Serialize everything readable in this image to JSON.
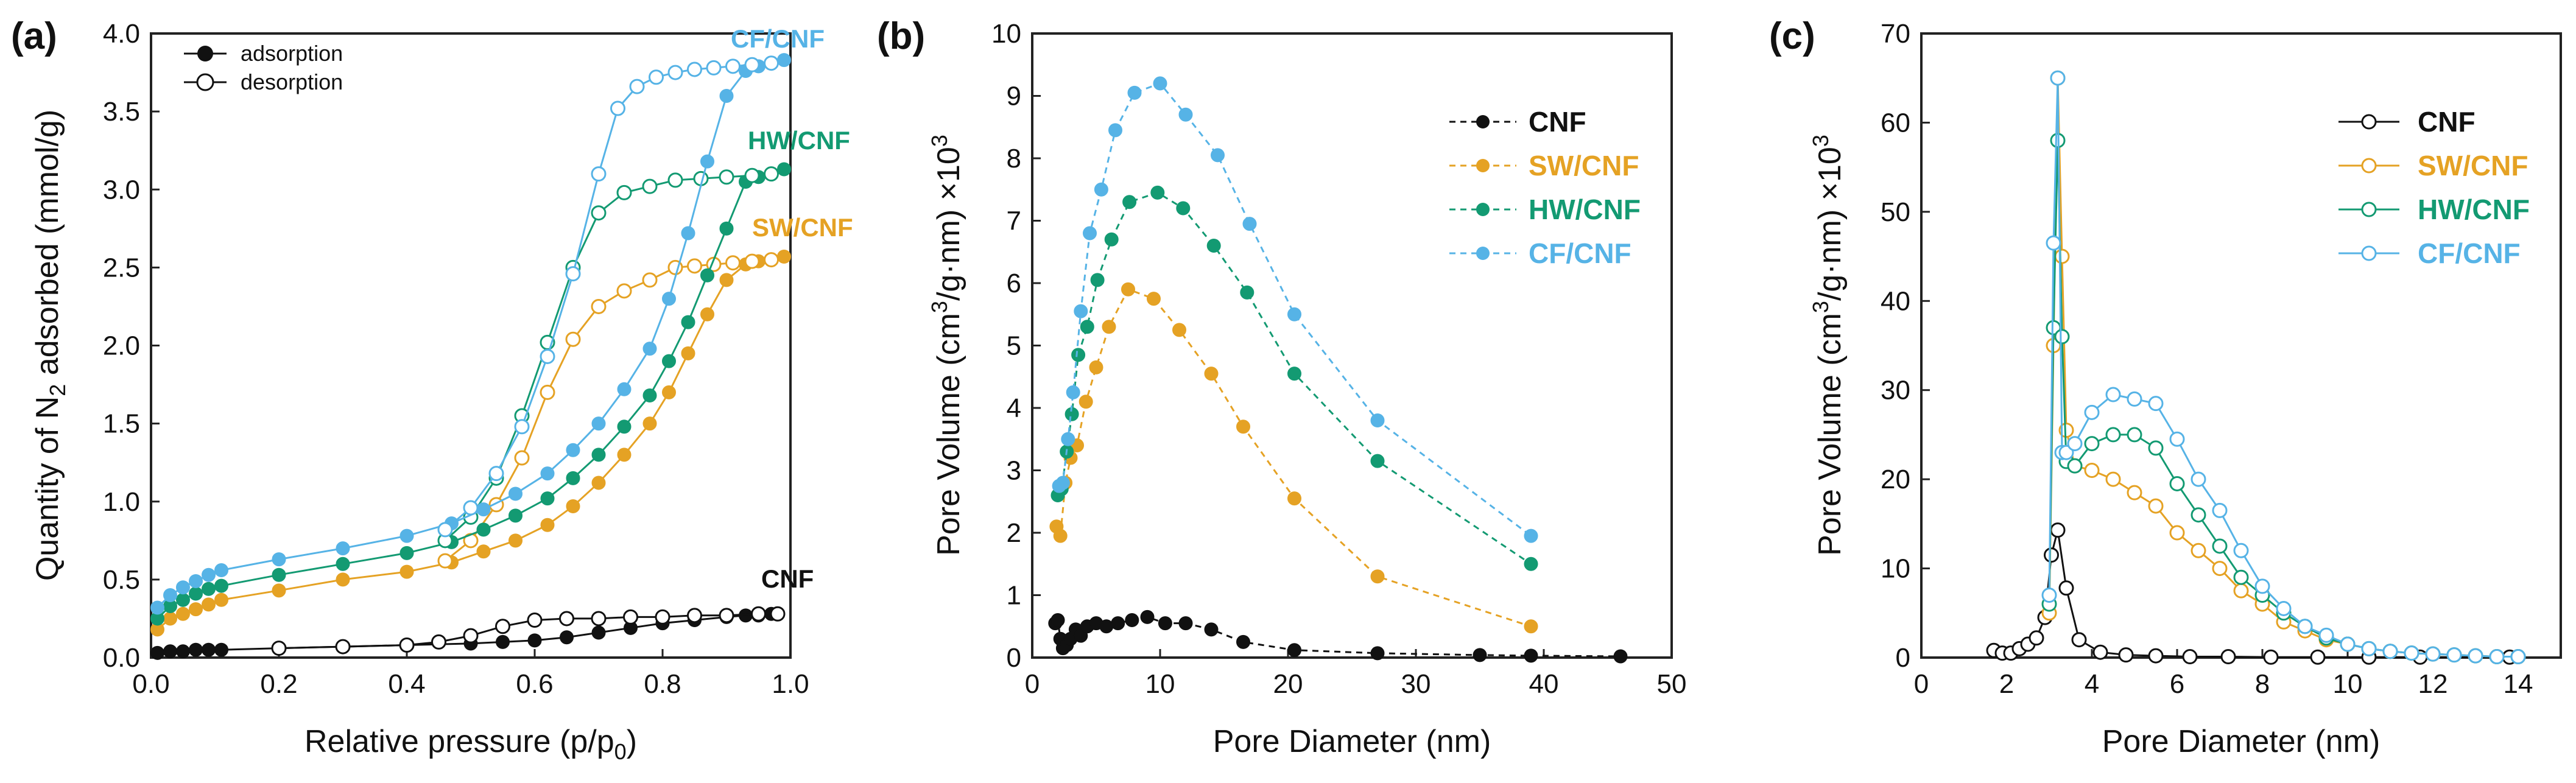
{
  "colors": {
    "CNF": "#111111",
    "SW/CNF": "#e5a224",
    "HW/CNF": "#139a72",
    "CF/CNF": "#56b3e6"
  },
  "chart_data": [
    {
      "panel_label": "(a)",
      "type": "line",
      "title": "",
      "xlabel": "Relative pressure (p/p",
      "xlabel_sub": "0",
      "xlabel_end": ")",
      "ylabel_pre": "Quantity of N",
      "ylabel_sub": "2",
      "ylabel_post": " adsorbed (mmol/g)",
      "xlim": [
        0,
        1
      ],
      "ylim": [
        0,
        4
      ],
      "xticks": [
        "0.0",
        "0.2",
        "0.4",
        "0.6",
        "0.8",
        "1.0"
      ],
      "yticks": [
        "0.0",
        "0.5",
        "1.0",
        "1.5",
        "2.0",
        "2.5",
        "3.0",
        "3.5",
        "4.0"
      ],
      "legend": [
        {
          "label": "adsorption",
          "marker": "filled"
        },
        {
          "label": "desorption",
          "marker": "open"
        }
      ],
      "series": [
        {
          "name": "CNF",
          "label": "CNF",
          "mode": "adsorption",
          "x": [
            0.01,
            0.03,
            0.05,
            0.07,
            0.09,
            0.11,
            0.2,
            0.3,
            0.4,
            0.5,
            0.55,
            0.6,
            0.65,
            0.7,
            0.75,
            0.8,
            0.85,
            0.9,
            0.93,
            0.95,
            0.97,
            0.98
          ],
          "y": [
            0.03,
            0.04,
            0.04,
            0.05,
            0.05,
            0.05,
            0.06,
            0.07,
            0.08,
            0.09,
            0.1,
            0.11,
            0.13,
            0.16,
            0.19,
            0.22,
            0.24,
            0.26,
            0.27,
            0.27,
            0.28,
            0.28
          ]
        },
        {
          "name": "CNF",
          "label": "CNF",
          "mode": "desorption",
          "x": [
            0.98,
            0.95,
            0.9,
            0.85,
            0.8,
            0.75,
            0.7,
            0.65,
            0.6,
            0.55,
            0.5,
            0.45,
            0.4,
            0.3,
            0.2
          ],
          "y": [
            0.28,
            0.28,
            0.27,
            0.27,
            0.26,
            0.26,
            0.25,
            0.25,
            0.24,
            0.2,
            0.14,
            0.1,
            0.08,
            0.07,
            0.06
          ]
        },
        {
          "name": "SW/CNF",
          "label": "SW/CNF",
          "mode": "adsorption",
          "x": [
            0.01,
            0.03,
            0.05,
            0.07,
            0.09,
            0.11,
            0.2,
            0.3,
            0.4,
            0.47,
            0.52,
            0.57,
            0.62,
            0.66,
            0.7,
            0.74,
            0.78,
            0.81,
            0.84,
            0.87,
            0.9,
            0.93,
            0.95,
            0.97,
            0.99
          ],
          "y": [
            0.18,
            0.25,
            0.28,
            0.31,
            0.34,
            0.37,
            0.43,
            0.5,
            0.55,
            0.61,
            0.68,
            0.75,
            0.85,
            0.97,
            1.12,
            1.3,
            1.5,
            1.7,
            1.95,
            2.2,
            2.42,
            2.52,
            2.54,
            2.55,
            2.57
          ]
        },
        {
          "name": "SW/CNF",
          "label": "SW/CNF",
          "mode": "desorption",
          "x": [
            0.97,
            0.94,
            0.91,
            0.88,
            0.85,
            0.82,
            0.78,
            0.74,
            0.7,
            0.66,
            0.62,
            0.58,
            0.54,
            0.5,
            0.46
          ],
          "y": [
            2.55,
            2.54,
            2.53,
            2.52,
            2.51,
            2.5,
            2.42,
            2.35,
            2.25,
            2.04,
            1.7,
            1.28,
            0.98,
            0.75,
            0.62
          ]
        },
        {
          "name": "HW/CNF",
          "label": "HW/CNF",
          "mode": "adsorption",
          "x": [
            0.01,
            0.03,
            0.05,
            0.07,
            0.09,
            0.11,
            0.2,
            0.3,
            0.4,
            0.47,
            0.52,
            0.57,
            0.62,
            0.66,
            0.7,
            0.74,
            0.78,
            0.81,
            0.84,
            0.87,
            0.9,
            0.93,
            0.95,
            0.97,
            0.99
          ],
          "y": [
            0.25,
            0.33,
            0.37,
            0.41,
            0.44,
            0.46,
            0.53,
            0.6,
            0.67,
            0.74,
            0.82,
            0.91,
            1.02,
            1.15,
            1.3,
            1.48,
            1.68,
            1.9,
            2.15,
            2.45,
            2.75,
            3.05,
            3.08,
            3.1,
            3.13
          ]
        },
        {
          "name": "HW/CNF",
          "label": "HW/CNF",
          "mode": "desorption",
          "x": [
            0.97,
            0.94,
            0.9,
            0.86,
            0.82,
            0.78,
            0.74,
            0.7,
            0.66,
            0.62,
            0.58,
            0.54,
            0.5,
            0.46
          ],
          "y": [
            3.1,
            3.09,
            3.08,
            3.07,
            3.06,
            3.02,
            2.98,
            2.85,
            2.5,
            2.02,
            1.55,
            1.15,
            0.9,
            0.75
          ]
        },
        {
          "name": "CF/CNF",
          "label": "CF/CNF",
          "mode": "adsorption",
          "x": [
            0.01,
            0.03,
            0.05,
            0.07,
            0.09,
            0.11,
            0.2,
            0.3,
            0.4,
            0.47,
            0.52,
            0.57,
            0.62,
            0.66,
            0.7,
            0.74,
            0.78,
            0.81,
            0.84,
            0.87,
            0.9,
            0.93,
            0.95,
            0.97,
            0.99
          ],
          "y": [
            0.32,
            0.4,
            0.45,
            0.49,
            0.53,
            0.56,
            0.63,
            0.7,
            0.78,
            0.86,
            0.95,
            1.05,
            1.18,
            1.33,
            1.5,
            1.72,
            1.98,
            2.3,
            2.72,
            3.18,
            3.6,
            3.76,
            3.79,
            3.81,
            3.83
          ]
        },
        {
          "name": "CF/CNF",
          "label": "CF/CNF",
          "mode": "desorption",
          "x": [
            0.97,
            0.94,
            0.91,
            0.88,
            0.85,
            0.82,
            0.79,
            0.76,
            0.73,
            0.7,
            0.66,
            0.62,
            0.58,
            0.54,
            0.5,
            0.46
          ],
          "y": [
            3.81,
            3.8,
            3.79,
            3.78,
            3.77,
            3.75,
            3.72,
            3.66,
            3.52,
            3.1,
            2.46,
            1.93,
            1.48,
            1.18,
            0.96,
            0.82
          ]
        }
      ]
    },
    {
      "panel_label": "(b)",
      "type": "scatter",
      "title": "",
      "xlabel": "Pore Diameter (nm)",
      "ylabel_pre": "Pore Volume (cm",
      "ylabel_sup1": "3",
      "ylabel_mid": "/g·nm) ×10",
      "ylabel_sup2": "3",
      "xlim": [
        0,
        50
      ],
      "ylim": [
        0,
        10
      ],
      "xticks": [
        "0",
        "10",
        "20",
        "30",
        "40",
        "50"
      ],
      "yticks": [
        "0",
        "1",
        "2",
        "3",
        "4",
        "5",
        "6",
        "7",
        "8",
        "9",
        "10"
      ],
      "legend": [
        "CNF",
        "SW/CNF",
        "HW/CNF",
        "CF/CNF"
      ],
      "series": [
        {
          "name": "CNF",
          "x": [
            1.8,
            2.0,
            2.2,
            2.4,
            2.7,
            3.0,
            3.4,
            3.8,
            4.3,
            5.0,
            5.8,
            6.7,
            7.8,
            9.0,
            10.4,
            12.0,
            14.0,
            16.5,
            20.5,
            27,
            35,
            39,
            46
          ],
          "y": [
            0.55,
            0.6,
            0.3,
            0.15,
            0.2,
            0.3,
            0.45,
            0.35,
            0.5,
            0.55,
            0.5,
            0.55,
            0.6,
            0.65,
            0.55,
            0.55,
            0.45,
            0.25,
            0.12,
            0.07,
            0.04,
            0.03,
            0.02
          ]
        },
        {
          "name": "SW/CNF",
          "x": [
            1.9,
            2.2,
            2.6,
            3.0,
            3.5,
            4.2,
            5.0,
            6.0,
            7.5,
            9.5,
            11.5,
            14.0,
            16.5,
            20.5,
            27,
            39
          ],
          "y": [
            2.1,
            1.95,
            2.8,
            3.2,
            3.4,
            4.1,
            4.65,
            5.3,
            5.9,
            5.75,
            5.25,
            4.55,
            3.7,
            2.55,
            1.3,
            0.5
          ]
        },
        {
          "name": "HW/CNF",
          "x": [
            2.0,
            2.3,
            2.7,
            3.1,
            3.6,
            4.3,
            5.1,
            6.2,
            7.6,
            9.8,
            11.8,
            14.2,
            16.8,
            20.5,
            27,
            39
          ],
          "y": [
            2.6,
            2.7,
            3.3,
            3.9,
            4.85,
            5.3,
            6.05,
            6.7,
            7.3,
            7.45,
            7.2,
            6.6,
            5.85,
            4.55,
            3.15,
            1.5
          ]
        },
        {
          "name": "CF/CNF",
          "x": [
            2.1,
            2.4,
            2.8,
            3.2,
            3.8,
            4.5,
            5.4,
            6.5,
            8.0,
            10.0,
            12.0,
            14.5,
            17.0,
            20.5,
            27,
            39
          ],
          "y": [
            2.75,
            2.8,
            3.5,
            4.25,
            5.55,
            6.8,
            7.5,
            8.45,
            9.05,
            9.2,
            8.7,
            8.05,
            6.95,
            5.5,
            3.8,
            1.95
          ]
        }
      ]
    },
    {
      "panel_label": "(c)",
      "type": "line",
      "title": "",
      "xlabel": "Pore Diameter (nm)",
      "ylabel_pre": "Pore Volume (cm",
      "ylabel_sup1": "3",
      "ylabel_mid": "/g·nm) ×10",
      "ylabel_sup2": "3",
      "xlim": [
        0,
        15
      ],
      "ylim": [
        0,
        70
      ],
      "xticks": [
        "0",
        "2",
        "4",
        "6",
        "8",
        "10",
        "12",
        "14"
      ],
      "yticks": [
        "0",
        "10",
        "20",
        "30",
        "40",
        "50",
        "60",
        "70"
      ],
      "legend": [
        "CNF",
        "SW/CNF",
        "HW/CNF",
        "CF/CNF"
      ],
      "series": [
        {
          "name": "CNF",
          "x": [
            1.7,
            1.9,
            2.1,
            2.3,
            2.5,
            2.7,
            2.9,
            3.05,
            3.2,
            3.4,
            3.7,
            4.2,
            4.8,
            5.5,
            6.3,
            7.2,
            8.2,
            9.3,
            10.5,
            11.7,
            13.8
          ],
          "y": [
            0.8,
            0.5,
            0.5,
            1.0,
            1.5,
            2.2,
            4.5,
            11.5,
            14.3,
            7.8,
            2.0,
            0.6,
            0.3,
            0.2,
            0.1,
            0.1,
            0.05,
            0.05,
            0.05,
            0.05,
            0.05
          ]
        },
        {
          "name": "SW/CNF",
          "x": [
            3.0,
            3.1,
            3.2,
            3.3,
            3.4,
            3.6,
            4.0,
            4.5,
            5.0,
            5.5,
            6.0,
            6.5,
            7.0,
            7.5,
            8.0,
            8.5,
            9.0,
            9.5,
            10.0,
            10.5,
            11.0,
            11.5,
            12.0,
            12.5,
            13.0,
            13.5,
            14.0
          ],
          "y": [
            5.0,
            35.0,
            65.0,
            45.0,
            25.5,
            21.5,
            21.0,
            20.0,
            18.5,
            17.0,
            14.0,
            12.0,
            10.0,
            7.5,
            6.0,
            4.0,
            3.0,
            2.0,
            1.5,
            1.0,
            0.7,
            0.5,
            0.4,
            0.3,
            0.2,
            0.1,
            0.1
          ]
        },
        {
          "name": "HW/CNF",
          "x": [
            3.0,
            3.1,
            3.2,
            3.3,
            3.4,
            3.6,
            4.0,
            4.5,
            5.0,
            5.5,
            6.0,
            6.5,
            7.0,
            7.5,
            8.0,
            8.5,
            9.0,
            9.5,
            10.0,
            10.5,
            11.0,
            11.5,
            12.0,
            12.5,
            13.0,
            13.5,
            14.0
          ],
          "y": [
            6.0,
            37.0,
            58.0,
            36.0,
            22.0,
            21.5,
            24.0,
            25.0,
            25.0,
            23.5,
            19.5,
            16.0,
            12.5,
            9.0,
            7.0,
            5.0,
            3.5,
            2.2,
            1.5,
            1.0,
            0.7,
            0.5,
            0.4,
            0.3,
            0.2,
            0.1,
            0.1
          ]
        },
        {
          "name": "CF/CNF",
          "x": [
            3.0,
            3.1,
            3.2,
            3.3,
            3.4,
            3.6,
            4.0,
            4.5,
            5.0,
            5.5,
            6.0,
            6.5,
            7.0,
            7.5,
            8.0,
            8.5,
            9.0,
            9.5,
            10.0,
            10.5,
            11.0,
            11.5,
            12.0,
            12.5,
            13.0,
            13.5,
            14.0
          ],
          "y": [
            7.0,
            46.5,
            65.0,
            23.0,
            23.0,
            24.0,
            27.5,
            29.5,
            29.0,
            28.5,
            24.5,
            20.0,
            16.5,
            12.0,
            8.0,
            5.5,
            3.5,
            2.5,
            1.5,
            1.0,
            0.7,
            0.5,
            0.4,
            0.3,
            0.2,
            0.1,
            0.1
          ]
        }
      ]
    }
  ]
}
